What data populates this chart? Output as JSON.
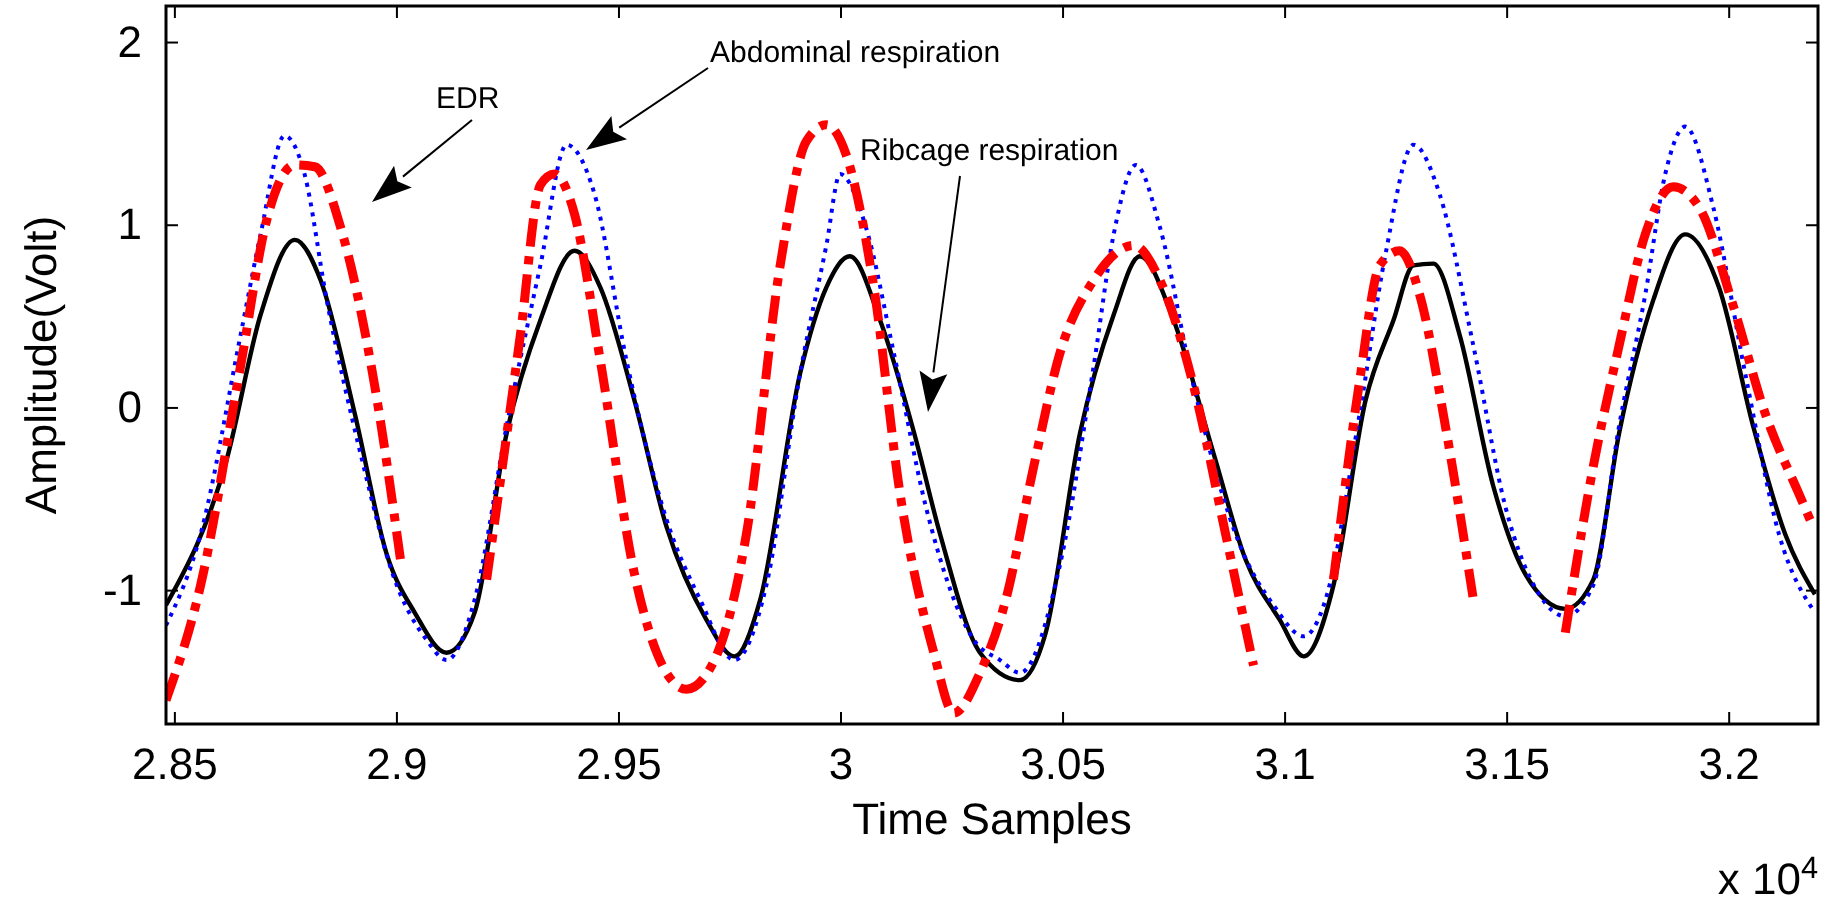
{
  "chart_data": {
    "type": "line",
    "xlabel": "Time Samples",
    "ylabel": "Amplitude(Volt)",
    "xlim": [
      2.848,
      3.22
    ],
    "xticks": [
      2.85,
      2.9,
      2.95,
      3,
      3.05,
      3.1,
      3.15,
      3.2
    ],
    "ylim": [
      -1.73,
      2.2
    ],
    "yticks": [
      -1,
      0,
      1,
      2
    ],
    "grid": false,
    "series": [
      {
        "color": "#000000",
        "line_style": "solid",
        "x": [
          2.848,
          2.8617,
          2.8693,
          2.877,
          2.8828,
          2.8905,
          2.8977,
          2.904,
          2.9112,
          2.9175,
          2.9247,
          2.9323,
          2.94,
          2.9458,
          2.9535,
          2.9607,
          2.9697,
          2.976,
          2.9818,
          2.9908,
          2.9967,
          3.002,
          3.0088,
          3.0165,
          3.0223,
          3.0313,
          3.0403,
          3.0461,
          3.0538,
          3.0614,
          3.0673,
          3.0749,
          3.0839,
          3.0911,
          3.0988,
          3.1042,
          3.1109,
          3.1181,
          3.1244,
          3.1289,
          3.1334,
          3.1393,
          3.1469,
          3.1541,
          3.1631,
          3.1694,
          3.1752,
          3.1829,
          3.1901,
          3.1977,
          3.2054,
          3.2126,
          3.2193
        ],
        "values": [
          -1.08,
          -0.28,
          0.51,
          0.92,
          0.7,
          -0.03,
          -0.8,
          -1.12,
          -1.34,
          -1.12,
          -0.14,
          0.48,
          0.86,
          0.66,
          0.04,
          -0.65,
          -1.16,
          -1.36,
          -1.05,
          0.19,
          0.66,
          0.83,
          0.48,
          -0.14,
          -0.69,
          -1.34,
          -1.49,
          -1.23,
          -0.14,
          0.51,
          0.83,
          0.48,
          -0.25,
          -0.83,
          -1.16,
          -1.36,
          -0.97,
          0.04,
          0.48,
          0.78,
          0.79,
          0.4,
          -0.43,
          -0.91,
          -1.1,
          -0.94,
          -0.14,
          0.59,
          0.95,
          0.66,
          -0.1,
          -0.69,
          -1.02
        ]
      },
      {
        "color": "#0000ff",
        "line_style": "dotted",
        "x": [
          2.848,
          2.8558,
          2.8648,
          2.8693,
          2.8747,
          2.8792,
          2.8842,
          2.8918,
          2.8995,
          2.9067,
          2.9112,
          2.9175,
          2.9247,
          2.9323,
          2.9382,
          2.9445,
          2.9517,
          2.9607,
          2.9683,
          2.976,
          2.9832,
          2.9908,
          2.9967,
          2.9998,
          3.0056,
          3.0119,
          3.0191,
          3.0299,
          3.0358,
          3.0403,
          3.0493,
          3.0569,
          3.0614,
          3.0664,
          3.0718,
          3.0794,
          3.0898,
          3.0974,
          3.1042,
          3.1091,
          3.1168,
          3.1226,
          3.1289,
          3.1348,
          3.1424,
          3.1496,
          3.1572,
          3.1631,
          3.1694,
          3.1752,
          3.1811,
          3.1856,
          3.1901,
          3.1964,
          3.2036,
          3.2112,
          3.2193
        ],
        "values": [
          -1.19,
          -0.69,
          0.4,
          0.95,
          1.49,
          1.28,
          0.59,
          -0.25,
          -0.94,
          -1.27,
          -1.38,
          -1.05,
          -0.1,
          0.78,
          1.44,
          1.17,
          0.26,
          -0.61,
          -1.05,
          -1.38,
          -0.97,
          0.19,
          0.89,
          1.28,
          0.99,
          0.3,
          -0.54,
          -1.27,
          -1.38,
          -1.45,
          -0.86,
          0.23,
          0.95,
          1.33,
          0.99,
          0.12,
          -0.75,
          -1.08,
          -1.25,
          -1.05,
          -0.03,
          0.84,
          1.44,
          1.17,
          0.34,
          -0.54,
          -1.02,
          -1.14,
          -0.97,
          -0.1,
          0.62,
          1.28,
          1.54,
          1.1,
          0.19,
          -0.69,
          -1.12
        ]
      },
      {
        "color": "#ff0000",
        "line_style": "dashed",
        "x": [
          2.848,
          2.8558,
          2.8648,
          2.8707,
          2.877,
          2.8815,
          2.8873,
          2.895,
          2.9008,
          2.9067,
          2.91,
          2.9143,
          2.9202,
          2.9278,
          2.9323,
          2.9355,
          2.94,
          2.9458,
          2.9535,
          2.9607,
          2.9652,
          2.9715,
          2.9787,
          2.9863,
          2.9922,
          2.9967,
          3.0011,
          3.0074,
          3.0133,
          3.0209,
          3.0254,
          3.0313,
          3.0371,
          3.0434,
          3.0493,
          3.0569,
          3.0659,
          3.0718,
          3.0794,
          3.0866,
          3.0929,
          3.0952,
          3.1,
          3.1055,
          3.1109,
          3.1168,
          3.1213,
          3.1258,
          3.1303,
          3.1361,
          3.1424,
          3.1473,
          3.152,
          3.1581,
          3.1631,
          3.1694,
          3.1752,
          3.1811,
          3.1874,
          3.1932,
          3.2009,
          3.2081,
          3.2157,
          3.2189
        ],
        "values": [
          -1.6,
          -0.97,
          0.23,
          1.03,
          1.33,
          1.32,
          0.99,
          0.12,
          -0.83,
          null,
          null,
          null,
          -0.94,
          0.4,
          1.22,
          1.28,
          1.06,
          0.26,
          -0.91,
          -1.45,
          -1.54,
          -1.38,
          -0.69,
          0.78,
          1.46,
          1.55,
          1.39,
          0.66,
          -0.47,
          -1.34,
          -1.67,
          -1.45,
          -1.05,
          -0.32,
          0.3,
          0.7,
          0.89,
          0.7,
          0.12,
          -0.69,
          -1.41,
          null,
          null,
          null,
          -0.94,
          0.15,
          0.78,
          0.86,
          0.62,
          -0.1,
          -1.05,
          null,
          null,
          null,
          -1.23,
          -0.32,
          0.34,
          0.95,
          1.21,
          1.1,
          0.56,
          -0.03,
          -0.47,
          -0.65
        ]
      }
    ],
    "annotations": [
      "EDR",
      "Abdominal respiration",
      "Ribcage respiration",
      "x 10$^{4}$"
    ]
  }
}
